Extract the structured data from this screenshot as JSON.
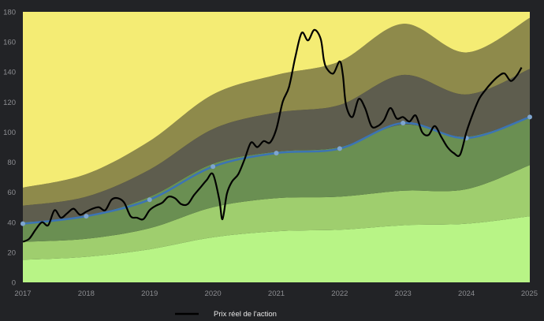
{
  "chart_data": {
    "type": "area",
    "title": "",
    "xlabel": "",
    "ylabel": "",
    "xlim": [
      2017,
      2025
    ],
    "ylim": [
      0,
      180
    ],
    "x_ticks": [
      "2017",
      "2018",
      "2019",
      "2020",
      "2021",
      "2022",
      "2023",
      "2024",
      "2025"
    ],
    "y_ticks": [
      "0",
      "20",
      "40",
      "60",
      "80",
      "100",
      "120",
      "140",
      "160",
      "180"
    ],
    "grid": false,
    "legend_position": "bottom",
    "bands": {
      "x": [
        2017,
        2018,
        2019,
        2020,
        2021,
        2022,
        2023,
        2024,
        2025
      ],
      "boundaries": [
        [
          15,
          17,
          22,
          30,
          34,
          35,
          38,
          39,
          44
        ],
        [
          27,
          29,
          36,
          50,
          56,
          57,
          61,
          62,
          78
        ],
        [
          40,
          44,
          57,
          79,
          87,
          90,
          105,
          97,
          110
        ],
        [
          51,
          57,
          75,
          102,
          113,
          118,
          138,
          125,
          142
        ],
        [
          63,
          72,
          94,
          125,
          138,
          147,
          172,
          153,
          176
        ]
      ],
      "colors": [
        "#b8f486",
        "#9fce6e",
        "#6a8f52",
        "#5e5d4e",
        "#8e8a4b",
        "#f4ec74"
      ]
    },
    "model_series": {
      "x": [
        2017,
        2018,
        2019,
        2020,
        2021,
        2022,
        2023,
        2024,
        2025
      ],
      "values": [
        39,
        44,
        55,
        77,
        86,
        89,
        106,
        96,
        110
      ],
      "color": "#3c74b4"
    },
    "series": [
      {
        "name": "Prix réel de l'action",
        "color": "#000000",
        "x": [
          2017.0,
          2017.1,
          2017.2,
          2017.3,
          2017.4,
          2017.5,
          2017.6,
          2017.7,
          2017.8,
          2017.9,
          2018.0,
          2018.1,
          2018.2,
          2018.3,
          2018.4,
          2018.5,
          2018.6,
          2018.7,
          2018.8,
          2018.9,
          2019.0,
          2019.1,
          2019.2,
          2019.3,
          2019.4,
          2019.5,
          2019.6,
          2019.7,
          2019.8,
          2019.9,
          2020.0,
          2020.1,
          2020.15,
          2020.22,
          2020.3,
          2020.4,
          2020.5,
          2020.6,
          2020.7,
          2020.8,
          2020.9,
          2021.0,
          2021.1,
          2021.2,
          2021.3,
          2021.4,
          2021.5,
          2021.6,
          2021.7,
          2021.75,
          2021.8,
          2021.9,
          2022.0,
          2022.05,
          2022.1,
          2022.2,
          2022.3,
          2022.4,
          2022.5,
          2022.6,
          2022.7,
          2022.8,
          2022.9,
          2023.0,
          2023.1,
          2023.2,
          2023.3,
          2023.4,
          2023.5,
          2023.6,
          2023.7,
          2023.8,
          2023.9,
          2024.0,
          2024.1,
          2024.2,
          2024.3,
          2024.4,
          2024.5,
          2024.6,
          2024.7,
          2024.8,
          2024.87
        ],
        "values": [
          27,
          29,
          35,
          40,
          38,
          48,
          43,
          46,
          49,
          45,
          47,
          49,
          50,
          48,
          55,
          56,
          53,
          44,
          43,
          42,
          48,
          51,
          53,
          57,
          56,
          52,
          52,
          58,
          63,
          68,
          72,
          55,
          42,
          59,
          67,
          72,
          82,
          93,
          90,
          94,
          93,
          102,
          120,
          130,
          150,
          166,
          161,
          168,
          162,
          148,
          142,
          139,
          147,
          138,
          118,
          110,
          122,
          116,
          104,
          104,
          108,
          116,
          109,
          110,
          107,
          111,
          100,
          98,
          104,
          97,
          90,
          86,
          85,
          100,
          112,
          122,
          128,
          133,
          137,
          139,
          134,
          138,
          143
        ]
      }
    ]
  }
}
